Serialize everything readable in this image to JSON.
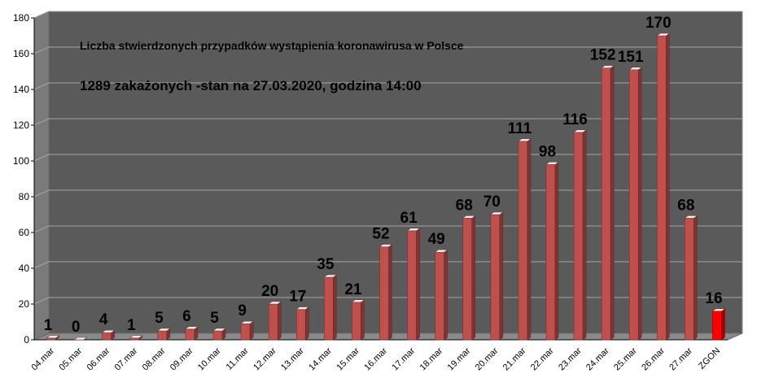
{
  "chart_data": {
    "type": "bar",
    "title": "Liczba stwierdzonych przypadków wystąpienia koronawirusa w Polsce",
    "subtitle": "1289 zakażonych  -stan  na 27.03.2020, godzina  14:00",
    "xlabel": "",
    "ylabel": "",
    "ylim": [
      0,
      180
    ],
    "yticks": [
      0,
      20,
      40,
      60,
      80,
      100,
      120,
      140,
      160,
      180
    ],
    "categories": [
      "04.mar",
      "05.mar",
      "06.mar",
      "07.mar",
      "08.mar",
      "09.mar",
      "10.mar",
      "11.mar",
      "12.mar",
      "13.mar",
      "14.mar",
      "15.mar",
      "16.mar",
      "17.mar",
      "18.mar",
      "19.mar",
      "20.mar",
      "21.mar",
      "22.mar",
      "23.mar",
      "24.mar",
      "25.mar",
      "26.mar",
      "27.mar",
      "ZGON"
    ],
    "values": [
      1,
      0,
      4,
      1,
      5,
      6,
      5,
      9,
      20,
      17,
      35,
      21,
      52,
      61,
      49,
      68,
      70,
      111,
      98,
      116,
      152,
      151,
      170,
      68,
      16
    ],
    "grid": true,
    "legend": "none",
    "colors": {
      "bar": "#c0504d",
      "bar_highlight": "#ff0000",
      "background": "#5a5a5a",
      "grid": "#a6a6a6"
    }
  }
}
